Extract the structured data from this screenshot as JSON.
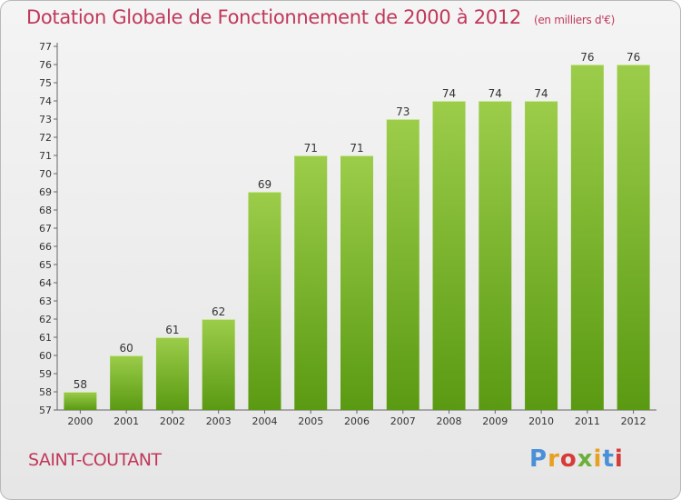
{
  "header": {
    "title": "Dotation Globale de Fonctionnement de 2000 à 2012",
    "unit": "(en milliers d'€)"
  },
  "footer": {
    "commune": "SAINT-COUTANT",
    "logo_text": "Proxiti"
  },
  "colors": {
    "bar_top": "#9ccd4a",
    "bar_bottom": "#5a9a12",
    "title": "#c0385a"
  },
  "chart_data": {
    "type": "bar",
    "title": "Dotation Globale de Fonctionnement de 2000 à 2012",
    "xlabel": "",
    "ylabel": "",
    "categories": [
      "2000",
      "2001",
      "2002",
      "2003",
      "2004",
      "2005",
      "2006",
      "2007",
      "2008",
      "2009",
      "2010",
      "2011",
      "2012"
    ],
    "values": [
      58,
      60,
      61,
      62,
      69,
      71,
      71,
      73,
      74,
      74,
      74,
      76,
      76
    ],
    "ylim": [
      57,
      77
    ],
    "yticks": [
      57,
      58,
      59,
      60,
      61,
      62,
      63,
      64,
      65,
      66,
      67,
      68,
      69,
      70,
      71,
      72,
      73,
      74,
      75,
      76,
      77
    ],
    "grid": false,
    "legend": "none"
  }
}
